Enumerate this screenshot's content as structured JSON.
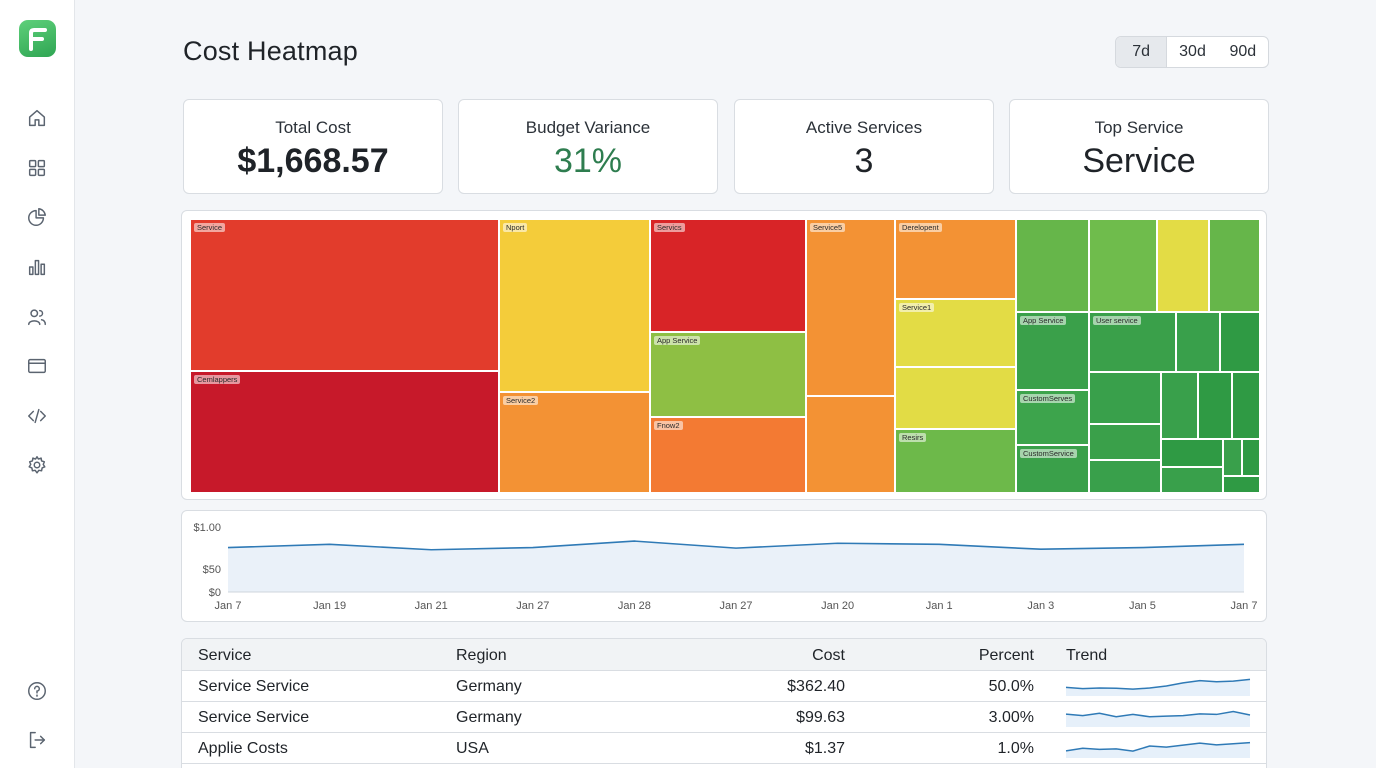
{
  "page": {
    "title": "Cost Heatmap"
  },
  "range": {
    "options": [
      "7d",
      "30d",
      "90d"
    ],
    "selected": "7d"
  },
  "kpis": [
    {
      "label": "Total Cost",
      "value": "$1,668.57"
    },
    {
      "label": "Budget Variance",
      "value": "31%"
    },
    {
      "label": "Active Services",
      "value": "3"
    },
    {
      "label": "Top Service",
      "value": "Service"
    }
  ],
  "sidebar": {
    "icons": [
      "home-icon",
      "grid-icon",
      "pie-chart-icon",
      "bar-chart-icon",
      "users-icon",
      "browser-window-icon",
      "code-icon",
      "gear-icon"
    ],
    "bottom_icons": [
      "help-icon",
      "logout-icon"
    ]
  },
  "treemap": {
    "labels": [
      "Service",
      "Cemlappers",
      "Nport",
      "Service2",
      "Servics",
      "App Service",
      "Fnow2",
      "Service5",
      "Derelopent",
      "Service1",
      "Resirs",
      "App Service",
      "User service",
      "CustomServes",
      "CustomService"
    ]
  },
  "chart_data": {
    "type": "line",
    "x": [
      "Jan 7",
      "Jan 19",
      "Jan 21",
      "Jan 27",
      "Jan 28",
      "Jan 27",
      "Jan 20",
      "Jan 1",
      "Jan 3",
      "Jan 5",
      "Jan 7"
    ],
    "series": [
      {
        "values": [
          0.82,
          0.88,
          0.78,
          0.82,
          0.94,
          0.81,
          0.9,
          0.88,
          0.79,
          0.82,
          0.88
        ]
      }
    ],
    "y_ticks": [
      "$1.00",
      "$50",
      "$0"
    ],
    "ylim": [
      0,
      1.2
    ],
    "grid": false,
    "colors": {
      "line": "#2f7ab6",
      "fill": "#eaf1f9"
    }
  },
  "table": {
    "headers": [
      "Service",
      "Region",
      "Cost",
      "Percent",
      "Trend"
    ],
    "rows": [
      {
        "service": "Service Service",
        "region": "Germany",
        "cost": "$362.40",
        "percent": "50.0%",
        "trend": [
          3,
          2.6,
          2.8,
          2.7,
          2.4,
          2.8,
          3.5,
          4.6,
          5.4,
          5.0,
          5.2,
          5.8
        ]
      },
      {
        "service": "Service Service",
        "region": "Germany",
        "cost": "$99.63",
        "percent": "3.00%",
        "trend": [
          4.5,
          4.0,
          4.8,
          3.6,
          4.4,
          3.6,
          3.8,
          4.0,
          4.6,
          4.4,
          5.4,
          4.2
        ]
      },
      {
        "service": "Applie Costs",
        "region": "USA",
        "cost": "$1.37",
        "percent": "1.0%",
        "trend": [
          2.5,
          3.4,
          3.0,
          3.2,
          2.4,
          4.2,
          3.8,
          4.5,
          5.2,
          4.6,
          5.0,
          5.4
        ]
      }
    ]
  }
}
